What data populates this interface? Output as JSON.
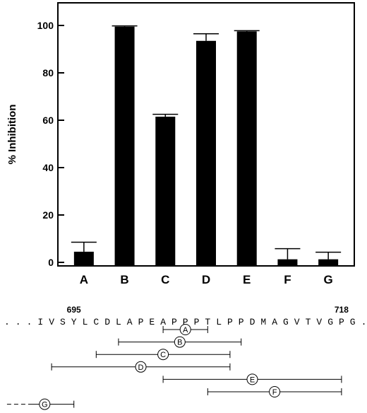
{
  "chart_data": {
    "type": "bar",
    "ylabel": "% Inhibition",
    "xlabel": "",
    "categories": [
      "A",
      "B",
      "C",
      "D",
      "E",
      "F",
      "G"
    ],
    "values": [
      4.5,
      99.5,
      61.5,
      93.5,
      97.5,
      1.3,
      1.3
    ],
    "error": [
      4,
      0.3,
      1,
      3,
      0.3,
      4.5,
      3
    ],
    "ylim": [
      0,
      110
    ],
    "yticks": [
      0,
      20,
      40,
      60,
      80,
      100
    ],
    "grid": false,
    "bar_color": "#000000"
  },
  "sequence": {
    "text": "...IVSYLCDLAPEAPPPTLPPDMAGVTVGPG...",
    "start_label": "695",
    "end_label": "718",
    "start_residue_index": 6,
    "end_residue_index": 30
  },
  "peptides": [
    {
      "label": "A",
      "from": 14,
      "to": 18
    },
    {
      "label": "B",
      "from": 10,
      "to": 21
    },
    {
      "label": "C",
      "from": 8,
      "to": 20
    },
    {
      "label": "D",
      "from": 4,
      "to": 20
    },
    {
      "label": "E",
      "from": 14,
      "to": 30
    },
    {
      "label": "F",
      "from": 18,
      "to": 30
    },
    {
      "label": "G",
      "from": 0,
      "to": 6,
      "dashed_start": true
    }
  ]
}
